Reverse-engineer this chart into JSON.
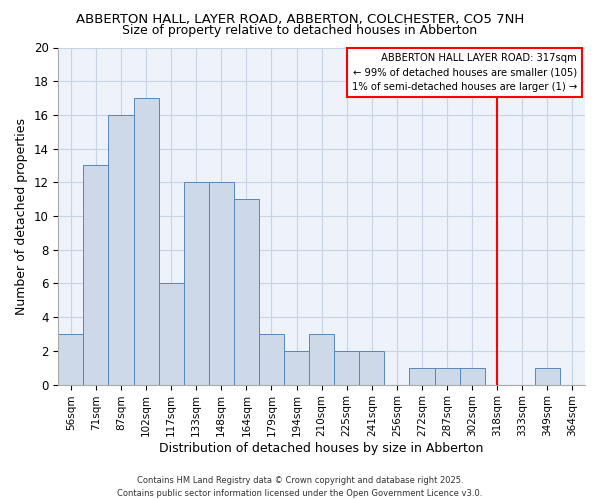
{
  "title": "ABBERTON HALL, LAYER ROAD, ABBERTON, COLCHESTER, CO5 7NH",
  "subtitle": "Size of property relative to detached houses in Abberton",
  "xlabel": "Distribution of detached houses by size in Abberton",
  "ylabel": "Number of detached properties",
  "bins": [
    "56sqm",
    "71sqm",
    "87sqm",
    "102sqm",
    "117sqm",
    "133sqm",
    "148sqm",
    "164sqm",
    "179sqm",
    "194sqm",
    "210sqm",
    "225sqm",
    "241sqm",
    "256sqm",
    "272sqm",
    "287sqm",
    "302sqm",
    "318sqm",
    "333sqm",
    "349sqm",
    "364sqm"
  ],
  "values": [
    3,
    13,
    16,
    17,
    6,
    12,
    12,
    11,
    3,
    2,
    3,
    2,
    2,
    0,
    1,
    1,
    1,
    0,
    0,
    1,
    0
  ],
  "bar_color": "#cdd9e8",
  "bar_edge_color": "#5588bb",
  "grid_color": "#c8d4e4",
  "bg_color": "#eef2fa",
  "vline_bin_index": 17,
  "vline_color": "red",
  "legend_title": "ABBERTON HALL LAYER ROAD: 317sqm",
  "legend_line1": "← 99% of detached houses are smaller (105)",
  "legend_line2": "1% of semi-detached houses are larger (1) →",
  "ylim": [
    0,
    20
  ],
  "yticks": [
    0,
    2,
    4,
    6,
    8,
    10,
    12,
    14,
    16,
    18,
    20
  ],
  "footer1": "Contains HM Land Registry data © Crown copyright and database right 2025.",
  "footer2": "Contains public sector information licensed under the Open Government Licence v3.0."
}
